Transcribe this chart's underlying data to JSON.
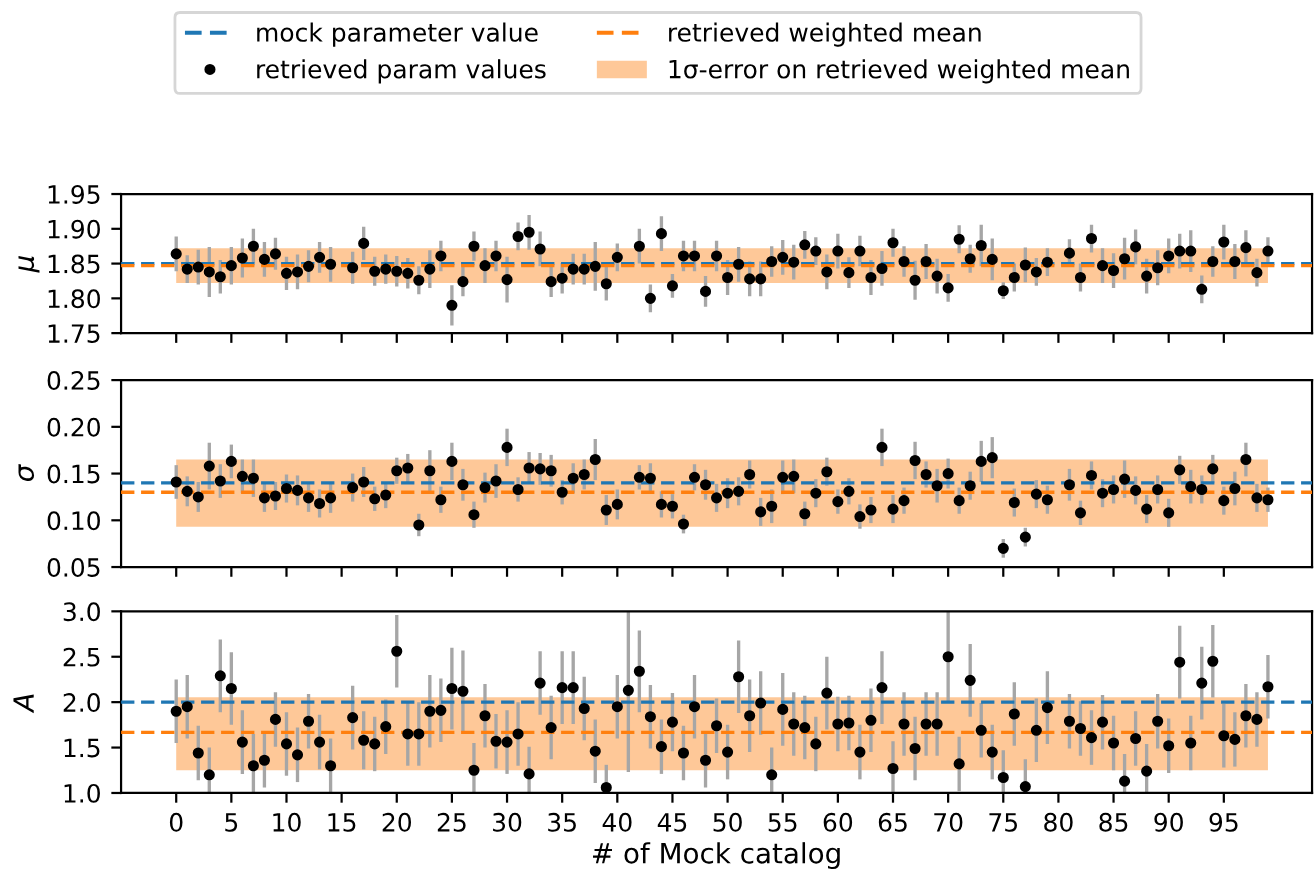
{
  "chart_data": [
    {
      "type": "scatter",
      "ylabel": "μ",
      "x": [
        0,
        1,
        2,
        3,
        4,
        5,
        6,
        7,
        8,
        9,
        10,
        11,
        12,
        13,
        14,
        15,
        16,
        17,
        18,
        19,
        20,
        21,
        22,
        23,
        24,
        25,
        26,
        27,
        28,
        29,
        30,
        31,
        32,
        33,
        34,
        35,
        36,
        37,
        38,
        39,
        40,
        41,
        42,
        43,
        44,
        45,
        46,
        47,
        48,
        49,
        50,
        51,
        52,
        53,
        54,
        55,
        56,
        57,
        58,
        59,
        60,
        61,
        62,
        63,
        64,
        65,
        66,
        67,
        68,
        69,
        70,
        71,
        72,
        73,
        74,
        75,
        76,
        77,
        78,
        79,
        80,
        81,
        82,
        83,
        84,
        85,
        86,
        87,
        88,
        89,
        90,
        91,
        92,
        93,
        94,
        95,
        96,
        97,
        98,
        99
      ],
      "xlim": [
        -5,
        103
      ],
      "xticks": [
        0,
        5,
        10,
        15,
        20,
        25,
        30,
        35,
        40,
        45,
        50,
        55,
        60,
        65,
        70,
        75,
        80,
        85,
        90,
        95
      ],
      "ylim": [
        1.75,
        1.95
      ],
      "yticks": [
        1.75,
        {
          "value": 1.8,
          "label": "1.80"
        },
        1.85,
        {
          "value": 1.9,
          "label": "1.90"
        },
        1.95
      ],
      "tick_labels": "y",
      "marker": "circle",
      "legend": "top",
      "grid": false,
      "series": [
        {
          "name": "retrieved param values",
          "color": "#000000",
          "values": [
            1.864,
            1.842,
            1.845,
            1.838,
            1.831,
            1.847,
            1.858,
            1.875,
            1.856,
            1.864,
            1.836,
            1.838,
            1.846,
            1.859,
            1.849,
            null,
            1.844,
            1.879,
            1.839,
            1.842,
            1.839,
            1.836,
            1.826,
            1.842,
            1.861,
            1.79,
            1.824,
            1.875,
            1.847,
            1.861,
            1.827,
            1.889,
            1.895,
            1.871,
            1.824,
            1.829,
            1.842,
            1.842,
            1.846,
            1.821,
            1.859,
            null,
            1.875,
            1.8,
            1.893,
            1.818,
            1.861,
            1.861,
            1.81,
            1.861,
            1.83,
            1.849,
            1.828,
            1.828,
            1.853,
            1.859,
            1.852,
            1.877,
            1.868,
            1.838,
            1.868,
            1.837,
            1.868,
            1.83,
            1.843,
            1.88,
            1.853,
            1.826,
            1.853,
            1.832,
            1.815,
            1.885,
            1.857,
            1.876,
            1.856,
            1.811,
            1.83,
            1.848,
            1.838,
            1.852,
            null,
            1.865,
            1.83,
            1.886,
            1.847,
            1.84,
            1.857,
            1.874,
            1.832,
            1.844,
            1.861,
            1.868,
            1.868,
            1.813,
            1.853,
            1.881,
            1.853,
            1.873,
            1.837,
            1.868
          ],
          "errors": [
            0.025,
            0.02,
            0.025,
            0.036,
            0.024,
            0.027,
            0.028,
            0.025,
            0.025,
            0.023,
            0.024,
            0.025,
            0.023,
            0.022,
            0.025,
            null,
            0.023,
            0.024,
            0.021,
            0.021,
            0.022,
            0.022,
            0.02,
            0.027,
            0.022,
            0.029,
            0.021,
            0.021,
            0.025,
            0.022,
            0.033,
            0.02,
            0.025,
            0.025,
            0.022,
            0.022,
            0.022,
            0.022,
            0.035,
            0.024,
            0.02,
            null,
            0.025,
            0.02,
            0.025,
            0.017,
            0.022,
            0.022,
            0.022,
            0.022,
            0.025,
            0.025,
            0.025,
            0.025,
            0.022,
            0.025,
            0.025,
            0.02,
            0.02,
            0.025,
            0.025,
            0.022,
            0.022,
            0.025,
            0.025,
            0.02,
            0.022,
            0.028,
            0.025,
            0.025,
            0.02,
            0.02,
            0.02,
            0.03,
            0.03,
            0.012,
            0.02,
            0.025,
            0.02,
            0.02,
            null,
            0.02,
            0.02,
            0.02,
            0.025,
            0.025,
            0.03,
            0.025,
            0.025,
            0.025,
            0.025,
            0.025,
            0.03,
            0.02,
            0.022,
            0.025,
            0.025,
            0.025,
            0.02,
            0.02
          ]
        }
      ],
      "ref_lines": [
        {
          "axis": "y",
          "value": 1.85,
          "label": "mock parameter value",
          "color": "#1f77b4",
          "line_style": "dashed"
        },
        {
          "axis": "y",
          "value": 1.847,
          "label": "retrieved weighted mean",
          "color": "#ff7f0e",
          "line_style": "dashed"
        }
      ],
      "bands": [
        {
          "axis": "y",
          "from": 1.822,
          "to": 1.872,
          "label": "1σ-error on retrieved weighted mean",
          "color": "#fec898"
        }
      ]
    },
    {
      "type": "scatter",
      "ylabel": "σ",
      "x": [
        0,
        1,
        2,
        3,
        4,
        5,
        6,
        7,
        8,
        9,
        10,
        11,
        12,
        13,
        14,
        15,
        16,
        17,
        18,
        19,
        20,
        21,
        22,
        23,
        24,
        25,
        26,
        27,
        28,
        29,
        30,
        31,
        32,
        33,
        34,
        35,
        36,
        37,
        38,
        39,
        40,
        41,
        42,
        43,
        44,
        45,
        46,
        47,
        48,
        49,
        50,
        51,
        52,
        53,
        54,
        55,
        56,
        57,
        58,
        59,
        60,
        61,
        62,
        63,
        64,
        65,
        66,
        67,
        68,
        69,
        70,
        71,
        72,
        73,
        74,
        75,
        76,
        77,
        78,
        79,
        80,
        81,
        82,
        83,
        84,
        85,
        86,
        87,
        88,
        89,
        90,
        91,
        92,
        93,
        94,
        95,
        96,
        97,
        98,
        99
      ],
      "xlim": [
        -5,
        103
      ],
      "xticks": [
        0,
        5,
        10,
        15,
        20,
        25,
        30,
        35,
        40,
        45,
        50,
        55,
        60,
        65,
        70,
        75,
        80,
        85,
        90,
        95
      ],
      "ylim": [
        0.05,
        0.25
      ],
      "yticks": [
        0.05,
        {
          "value": 0.1,
          "label": "0.10"
        },
        0.15,
        {
          "value": 0.2,
          "label": "0.20"
        },
        0.25
      ],
      "tick_labels": "y",
      "marker": "circle",
      "grid": false,
      "series": [
        {
          "color": "#000000",
          "values": [
            0.141,
            0.131,
            0.125,
            0.158,
            0.142,
            0.163,
            0.147,
            0.145,
            0.124,
            0.126,
            0.134,
            0.132,
            0.124,
            0.118,
            0.124,
            null,
            0.135,
            0.141,
            0.123,
            0.127,
            0.153,
            0.156,
            0.095,
            0.153,
            0.122,
            0.163,
            0.138,
            0.106,
            0.135,
            0.142,
            0.178,
            0.133,
            0.156,
            0.155,
            0.153,
            0.13,
            0.145,
            0.149,
            0.165,
            0.111,
            0.117,
            null,
            0.146,
            0.145,
            0.117,
            0.115,
            0.096,
            0.146,
            0.138,
            0.124,
            0.129,
            0.131,
            0.149,
            0.109,
            0.115,
            0.146,
            0.147,
            0.107,
            0.129,
            0.152,
            0.12,
            0.131,
            0.104,
            0.111,
            0.178,
            0.112,
            0.121,
            0.164,
            0.149,
            0.137,
            0.15,
            0.121,
            0.137,
            0.163,
            0.167,
            0.07,
            0.119,
            0.082,
            0.128,
            0.122,
            null,
            0.138,
            0.108,
            0.148,
            0.129,
            0.133,
            0.144,
            0.132,
            0.112,
            0.133,
            0.108,
            0.154,
            0.136,
            0.133,
            0.155,
            0.121,
            0.134,
            0.165,
            0.124,
            0.122
          ],
          "errors": [
            0.018,
            0.016,
            0.016,
            0.025,
            0.018,
            0.018,
            0.018,
            0.02,
            0.015,
            0.015,
            0.015,
            0.016,
            0.015,
            0.015,
            0.016,
            null,
            0.015,
            0.016,
            0.013,
            0.014,
            0.014,
            0.015,
            0.012,
            0.022,
            0.014,
            0.02,
            0.017,
            0.014,
            0.016,
            0.018,
            0.02,
            0.013,
            0.017,
            0.017,
            0.017,
            0.013,
            0.016,
            0.016,
            0.022,
            0.016,
            0.016,
            null,
            0.013,
            0.016,
            0.014,
            0.013,
            0.01,
            0.014,
            0.016,
            0.015,
            0.016,
            0.015,
            0.015,
            0.015,
            0.018,
            0.018,
            0.018,
            0.013,
            0.015,
            0.015,
            0.013,
            0.014,
            0.013,
            0.014,
            0.02,
            0.015,
            0.014,
            0.02,
            0.014,
            0.018,
            0.016,
            0.014,
            0.015,
            0.022,
            0.022,
            0.01,
            0.015,
            0.01,
            0.015,
            0.015,
            null,
            0.017,
            0.013,
            0.015,
            0.015,
            0.015,
            0.02,
            0.015,
            0.015,
            0.015,
            0.015,
            0.015,
            0.018,
            0.015,
            0.015,
            0.015,
            0.018,
            0.018,
            0.015,
            0.013
          ]
        }
      ],
      "ref_lines": [
        {
          "axis": "y",
          "value": 0.14,
          "color": "#1f77b4",
          "line_style": "dashed"
        },
        {
          "axis": "y",
          "value": 0.13,
          "color": "#ff7f0e",
          "line_style": "dashed"
        }
      ],
      "bands": [
        {
          "axis": "y",
          "from": 0.093,
          "to": 0.165,
          "color": "#fec898"
        }
      ]
    },
    {
      "type": "scatter",
      "xlabel": "# of Mock catalog",
      "ylabel": "A",
      "x": [
        0,
        1,
        2,
        3,
        4,
        5,
        6,
        7,
        8,
        9,
        10,
        11,
        12,
        13,
        14,
        15,
        16,
        17,
        18,
        19,
        20,
        21,
        22,
        23,
        24,
        25,
        26,
        27,
        28,
        29,
        30,
        31,
        32,
        33,
        34,
        35,
        36,
        37,
        38,
        39,
        40,
        41,
        42,
        43,
        44,
        45,
        46,
        47,
        48,
        49,
        50,
        51,
        52,
        53,
        54,
        55,
        56,
        57,
        58,
        59,
        60,
        61,
        62,
        63,
        64,
        65,
        66,
        67,
        68,
        69,
        70,
        71,
        72,
        73,
        74,
        75,
        76,
        77,
        78,
        79,
        80,
        81,
        82,
        83,
        84,
        85,
        86,
        87,
        88,
        89,
        90,
        91,
        92,
        93,
        94,
        95,
        96,
        97,
        98,
        99
      ],
      "xlim": [
        -5,
        103
      ],
      "xticks": [
        0,
        5,
        10,
        15,
        20,
        25,
        30,
        35,
        40,
        45,
        50,
        55,
        60,
        65,
        70,
        75,
        80,
        85,
        90,
        95
      ],
      "ylim": [
        1.0,
        3.0
      ],
      "yticks": [
        {
          "value": 1.0,
          "label": "1.0"
        },
        1.5,
        {
          "value": 2.0,
          "label": "2.0"
        },
        2.5,
        {
          "value": 3.0,
          "label": "3.0"
        }
      ],
      "marker": "circle",
      "grid": false,
      "series": [
        {
          "color": "#000000",
          "values": [
            1.9,
            1.95,
            1.44,
            1.2,
            2.29,
            2.15,
            1.56,
            1.3,
            1.36,
            1.81,
            1.54,
            1.42,
            1.79,
            1.56,
            1.3,
            null,
            1.83,
            1.58,
            1.54,
            1.73,
            2.56,
            1.65,
            1.65,
            1.9,
            1.91,
            2.15,
            2.12,
            1.25,
            1.85,
            1.57,
            1.56,
            1.65,
            1.21,
            2.21,
            1.72,
            2.16,
            2.16,
            1.93,
            1.46,
            1.06,
            1.95,
            2.13,
            2.34,
            1.84,
            1.51,
            1.78,
            1.44,
            1.95,
            1.36,
            1.74,
            1.45,
            2.28,
            1.85,
            1.99,
            1.2,
            1.92,
            1.76,
            1.72,
            1.54,
            2.1,
            1.76,
            1.77,
            1.45,
            1.8,
            2.16,
            1.27,
            1.76,
            1.49,
            1.76,
            1.76,
            2.5,
            1.32,
            2.24,
            1.69,
            1.45,
            1.17,
            1.87,
            1.07,
            1.69,
            1.94,
            null,
            1.79,
            1.71,
            1.61,
            1.78,
            1.55,
            1.13,
            1.6,
            1.24,
            1.79,
            1.52,
            2.44,
            1.55,
            2.21,
            2.45,
            1.63,
            1.59,
            1.85,
            1.81,
            2.17
          ],
          "errors": [
            0.35,
            0.35,
            0.3,
            0.3,
            0.4,
            0.4,
            0.35,
            0.35,
            0.3,
            0.3,
            0.35,
            0.3,
            0.3,
            0.3,
            0.3,
            null,
            0.35,
            0.32,
            0.3,
            0.3,
            0.4,
            0.35,
            0.35,
            0.4,
            0.35,
            0.45,
            0.45,
            0.3,
            0.35,
            0.3,
            0.35,
            0.35,
            0.3,
            0.35,
            0.35,
            0.4,
            0.4,
            0.35,
            0.35,
            0.25,
            0.35,
            0.9,
            0.45,
            0.35,
            0.3,
            0.32,
            0.3,
            0.35,
            0.3,
            0.3,
            0.3,
            0.4,
            0.4,
            0.35,
            0.3,
            0.4,
            0.35,
            0.35,
            0.3,
            0.4,
            0.3,
            0.3,
            0.3,
            0.35,
            0.4,
            0.3,
            0.35,
            0.35,
            0.35,
            0.35,
            0.5,
            0.3,
            0.4,
            0.3,
            0.3,
            0.3,
            0.35,
            0.3,
            0.35,
            0.4,
            null,
            0.3,
            0.3,
            0.3,
            0.3,
            0.3,
            0.3,
            0.3,
            0.3,
            0.3,
            0.3,
            0.4,
            0.3,
            0.4,
            0.4,
            0.35,
            0.3,
            0.35,
            0.3,
            0.35
          ]
        }
      ],
      "ref_lines": [
        {
          "axis": "y",
          "value": 2.0,
          "color": "#1f77b4",
          "line_style": "dashed"
        },
        {
          "axis": "y",
          "value": 1.667,
          "color": "#ff7f0e",
          "line_style": "dashed"
        }
      ],
      "bands": [
        {
          "axis": "y",
          "from": 1.25,
          "to": 2.055,
          "color": "#fec898"
        }
      ]
    }
  ]
}
